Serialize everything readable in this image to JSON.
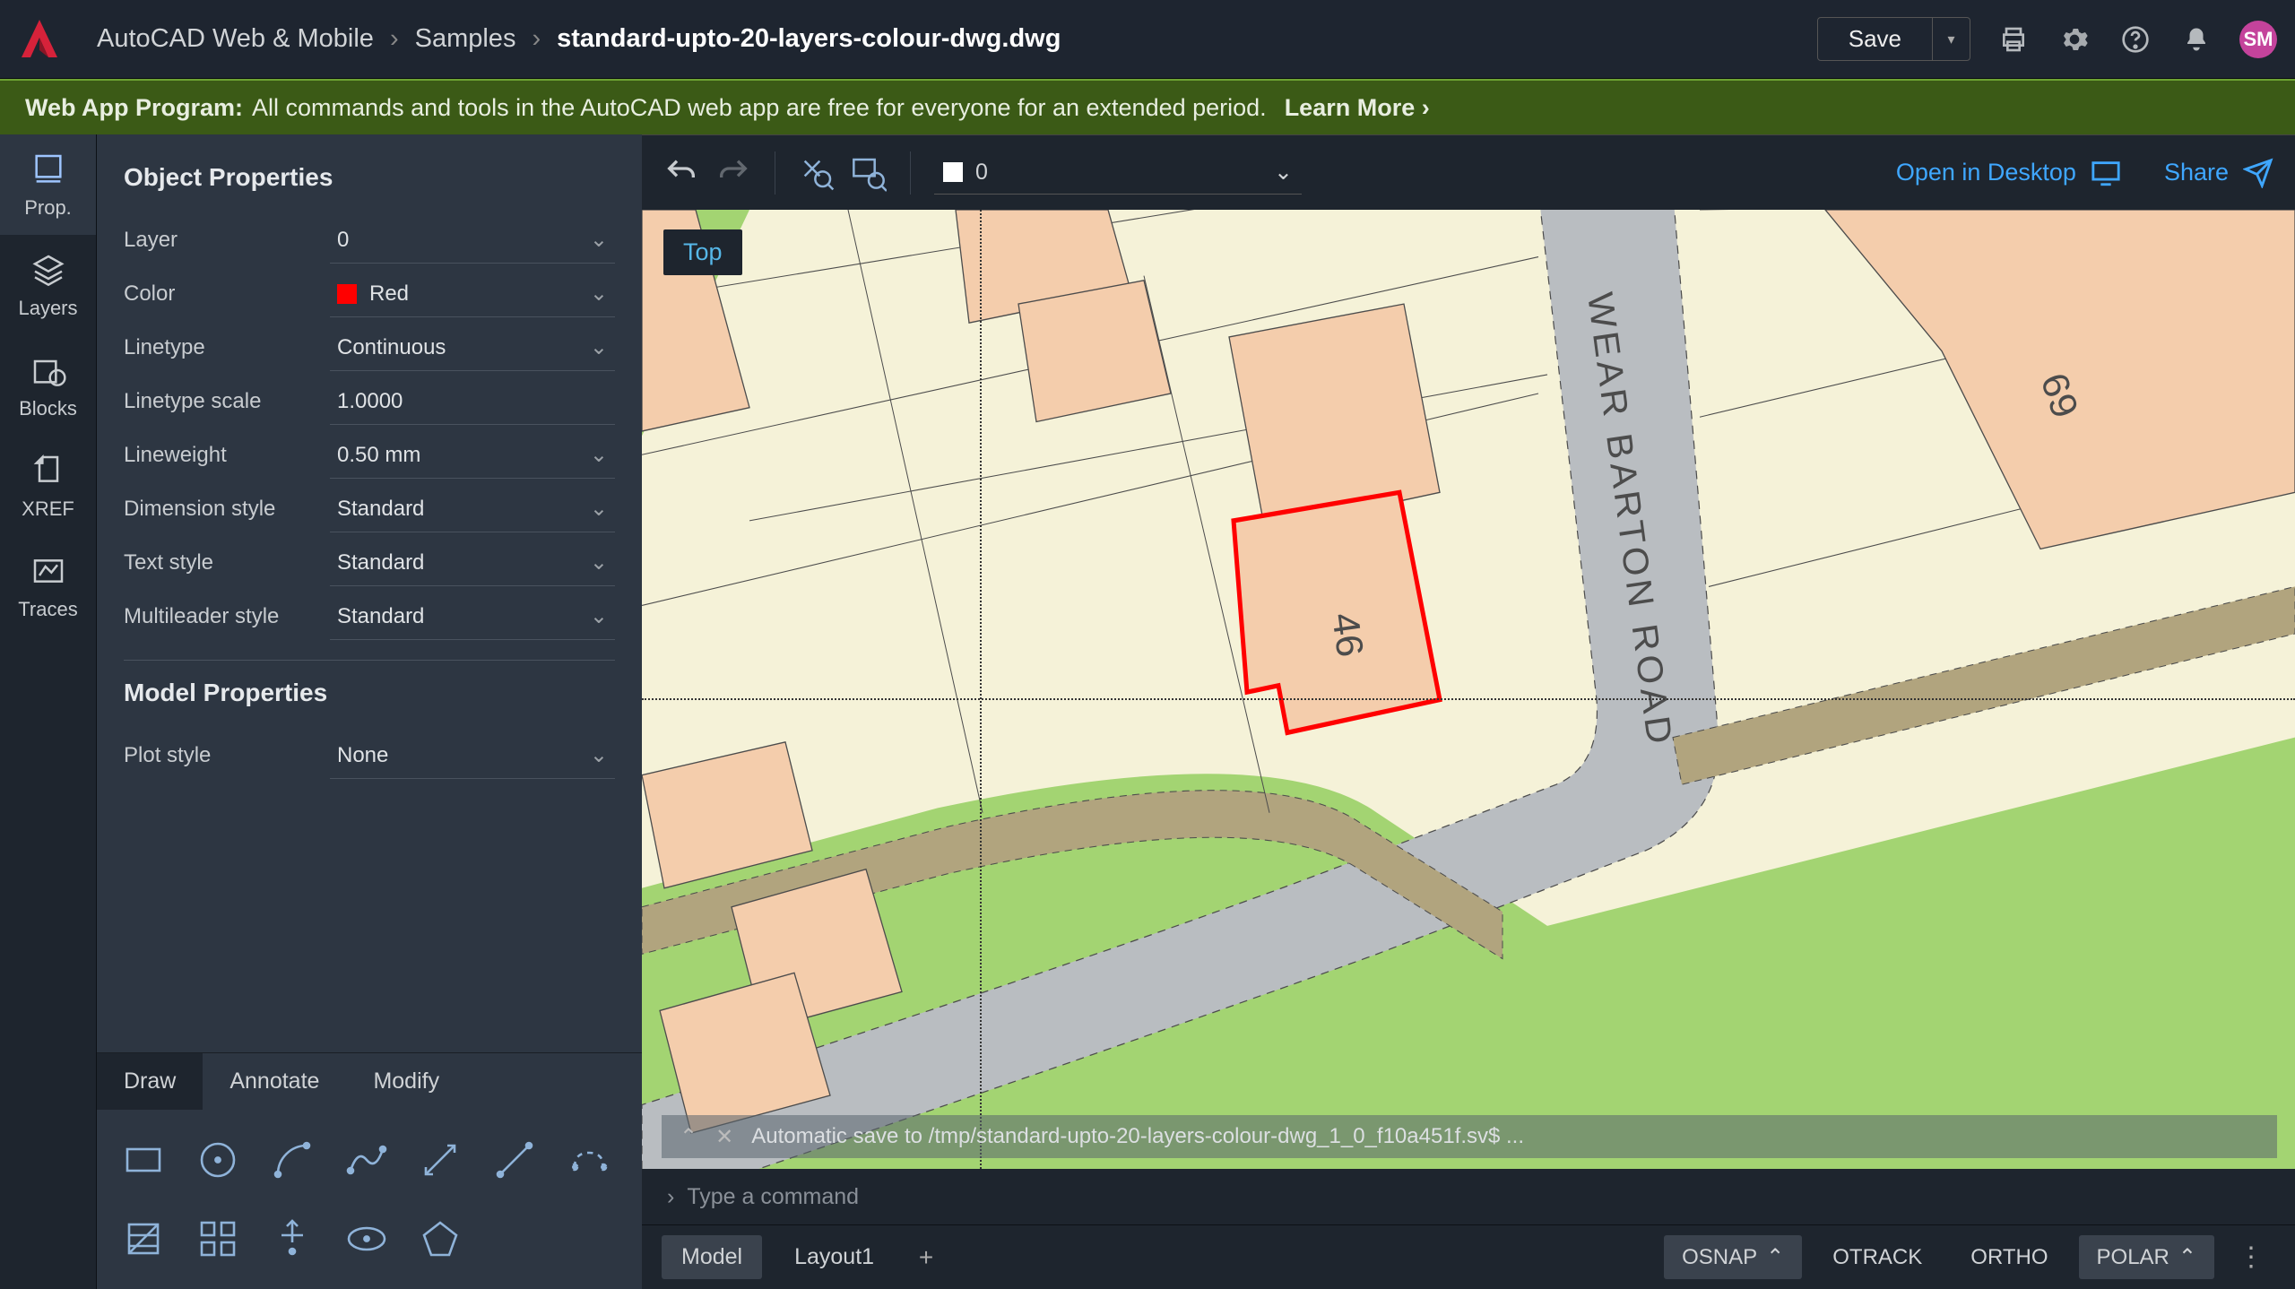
{
  "titlebar": {
    "app_name": "AutoCAD Web & Mobile",
    "crumbs": [
      "Samples",
      "standard-upto-20-layers-colour-dwg.dwg"
    ],
    "save_label": "Save",
    "avatar_initials": "SM",
    "avatar_bg": "#c4439b"
  },
  "banner": {
    "label": "Web App Program:",
    "text": "All commands and tools in the AutoCAD web app are free for everyone for an extended period.",
    "learn": "Learn More ›"
  },
  "leftnav": [
    {
      "label": "Prop.",
      "active": true
    },
    {
      "label": "Layers"
    },
    {
      "label": "Blocks"
    },
    {
      "label": "XREF"
    },
    {
      "label": "Traces"
    }
  ],
  "panel": {
    "obj_title": "Object Properties",
    "model_title": "Model Properties",
    "rows": [
      {
        "label": "Layer",
        "value": "0",
        "dd": true
      },
      {
        "label": "Color",
        "value": "Red",
        "dd": true,
        "swatch": "#ff0000"
      },
      {
        "label": "Linetype",
        "value": "Continuous",
        "dd": true
      },
      {
        "label": "Linetype scale",
        "value": "1.0000"
      },
      {
        "label": "Lineweight",
        "value": "0.50 mm",
        "dd": true
      },
      {
        "label": "Dimension style",
        "value": "Standard",
        "dd": true
      },
      {
        "label": "Text style",
        "value": "Standard",
        "dd": true
      },
      {
        "label": "Multileader style",
        "value": "Standard",
        "dd": true
      }
    ],
    "model_rows": [
      {
        "label": "Plot style",
        "value": "None",
        "dd": true
      }
    ]
  },
  "tool_tabs": [
    {
      "label": "Draw",
      "active": true
    },
    {
      "label": "Annotate"
    },
    {
      "label": "Modify"
    }
  ],
  "canvas_tb": {
    "layer_value": "0",
    "open_desktop": "Open in Desktop",
    "share": "Share"
  },
  "canvas": {
    "top_badge": "Top",
    "colors": {
      "land": "#f5f2d8",
      "grass": "#a3d472",
      "road": "#b9bdc1",
      "path": "#b1a47e",
      "building": "#f4cdac",
      "stroke": "#4c4c4c",
      "highlight": "#ff0000"
    },
    "road_label": "WEAR BARTON ROAD",
    "lot_a": "46",
    "lot_b": "69",
    "autosave": "Automatic save to /tmp/standard-upto-20-layers-colour-dwg_1_0_f10a451f.sv$ ..."
  },
  "cmdline": {
    "placeholder": "Type a command"
  },
  "bottombar": {
    "layouts": [
      {
        "label": "Model",
        "active": true
      },
      {
        "label": "Layout1"
      }
    ],
    "toggles": [
      {
        "label": "OSNAP",
        "active": true,
        "chev": true
      },
      {
        "label": "OTRACK",
        "active": false
      },
      {
        "label": "ORTHO",
        "active": false
      },
      {
        "label": "POLAR",
        "active": true,
        "chev": true
      }
    ]
  }
}
